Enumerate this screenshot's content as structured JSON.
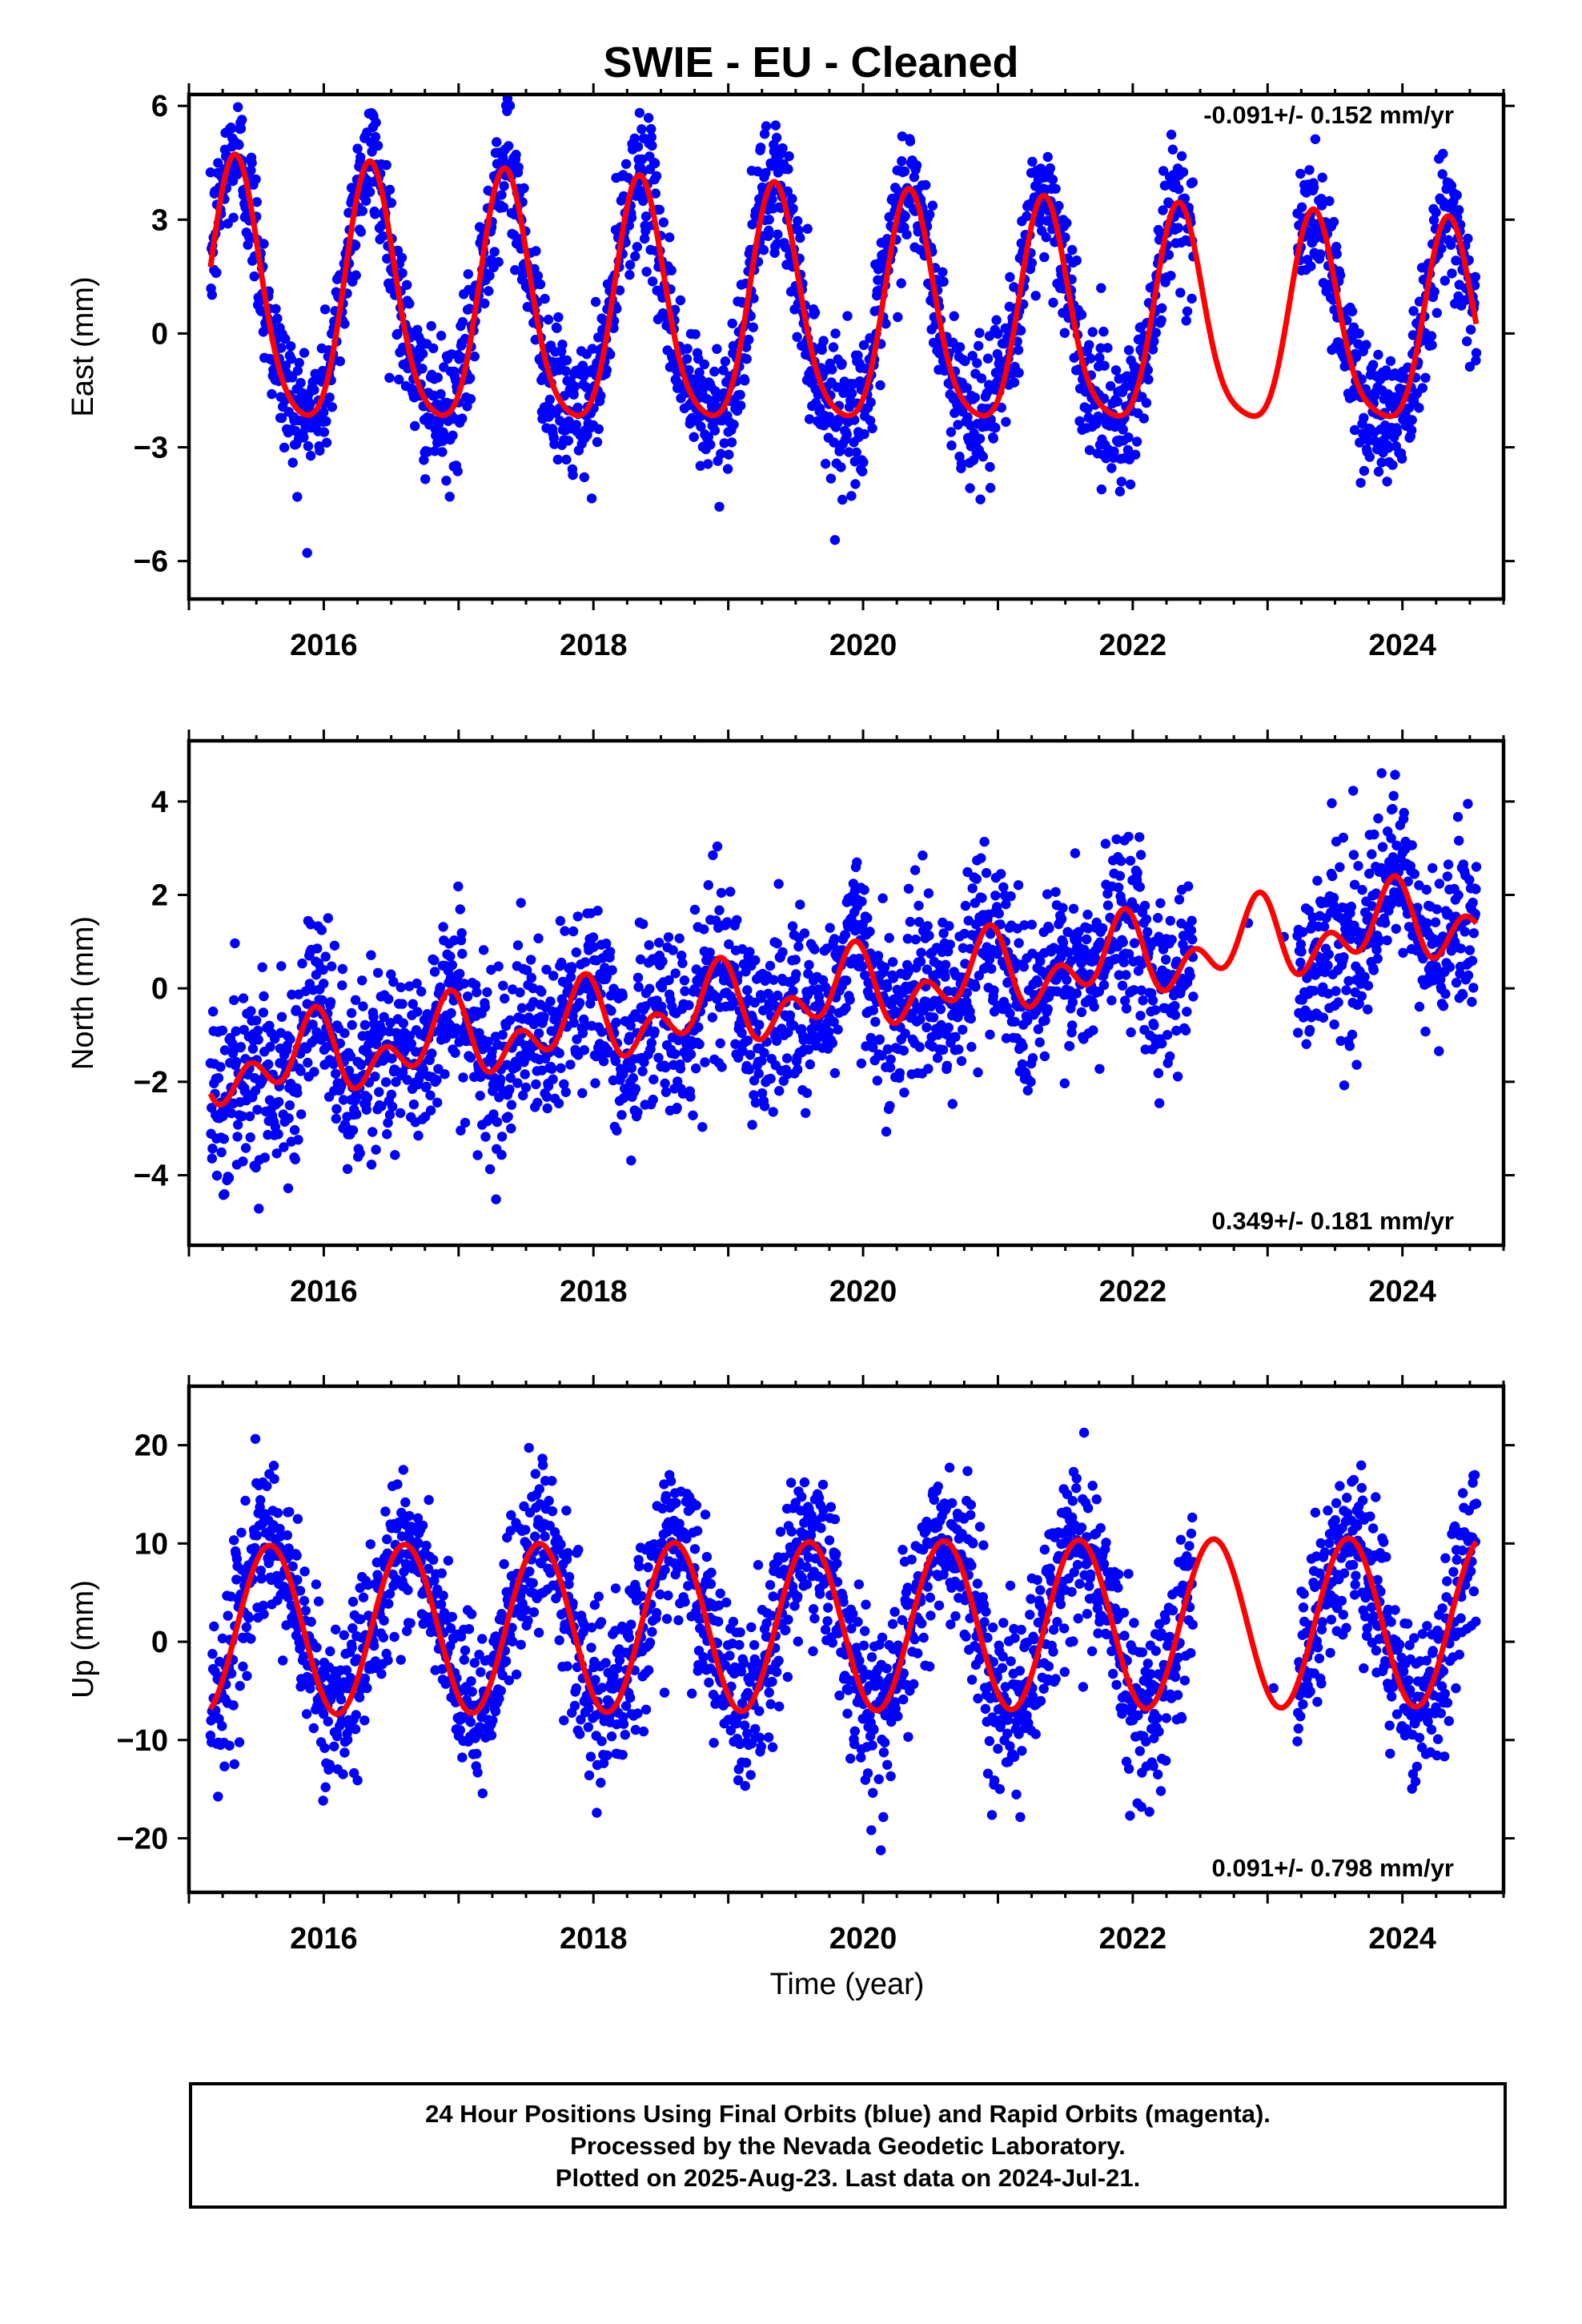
{
  "title": "SWIE  - EU - Cleaned",
  "colors": {
    "data": "#0000ff",
    "model": "#ff0000",
    "frame": "#000000"
  },
  "time_label": "Time (year)",
  "footer": {
    "line1": "24 Hour Positions Using Final Orbits (blue) and Rapid Orbits (magenta).",
    "line2": "Processed by the Nevada Geodetic Laboratory.",
    "line3": "Plotted on 2025-Aug-23. Last data on 2024-Jul-21."
  },
  "chart_data": [
    {
      "type": "scatter",
      "component": "east",
      "ylabel": "East (mm)",
      "rate_text": "-0.091+/- 0.152 mm/yr",
      "rate_position": "top-right",
      "xlim": [
        2015.0,
        2024.75
      ],
      "ylim": [
        -7,
        6.3
      ],
      "xticks": [
        2016,
        2018,
        2020,
        2022,
        2024
      ],
      "yticks": [
        -6,
        -3,
        0,
        3,
        6
      ],
      "ytick_labels": [
        "−6",
        "−3",
        "0",
        "3",
        "6"
      ],
      "grid": false,
      "data_start": 2015.16,
      "data_end": 2024.55,
      "gaps": [
        [
          2022.45,
          2023.22
        ]
      ],
      "model": {
        "offset": 0.34,
        "rate": -0.091,
        "ref_year": 2020.0,
        "annual_amp": 3.0,
        "annual_peak": 0.35,
        "semi_amp": 0.55,
        "semi_peak": 0.33,
        "amp_trend": -0.03
      },
      "scatter_sd": 0.9,
      "series": [
        {
          "name": "Final Orbits",
          "color": "#0000ff"
        },
        {
          "name": "Model fit",
          "color": "#ff0000"
        }
      ]
    },
    {
      "type": "scatter",
      "component": "north",
      "ylabel": "North (mm)",
      "rate_text": "0.349+/- 0.181 mm/yr",
      "rate_position": "bottom-right",
      "xlim": [
        2015.0,
        2024.75
      ],
      "ylim": [
        -5.5,
        5.3
      ],
      "xticks": [
        2016,
        2018,
        2020,
        2022,
        2024
      ],
      "yticks": [
        -4,
        -2,
        0,
        2,
        4
      ],
      "ytick_labels": [
        "−4",
        "−2",
        "0",
        "2",
        "4"
      ],
      "grid": false,
      "data_start": 2015.16,
      "data_end": 2024.55,
      "gaps": [
        [
          2022.45,
          2023.22
        ]
      ],
      "model": {
        "offset": -0.05,
        "rate": 0.349,
        "ref_year": 2020.0,
        "annual_amp": 0.55,
        "annual_peak": 0.9,
        "semi_amp": 0.55,
        "semi_peak": 0.45,
        "amp_trend": 0.0
      },
      "scatter_sd": 0.95,
      "series": [
        {
          "name": "Final Orbits",
          "color": "#0000ff"
        },
        {
          "name": "Model fit",
          "color": "#ff0000"
        }
      ]
    },
    {
      "type": "scatter",
      "component": "up",
      "ylabel": "Up (mm)",
      "rate_text": "0.091+/- 0.798 mm/yr",
      "rate_position": "bottom-right",
      "xlim": [
        2015.0,
        2024.75
      ],
      "ylim": [
        -25.5,
        26
      ],
      "xticks": [
        2016,
        2018,
        2020,
        2022,
        2024
      ],
      "yticks": [
        -20,
        -10,
        0,
        10,
        20
      ],
      "ytick_labels": [
        "−20",
        "−10",
        "0",
        "10",
        "20"
      ],
      "grid": false,
      "data_start": 2015.16,
      "data_end": 2024.55,
      "gaps": [
        [
          2022.45,
          2023.22
        ]
      ],
      "model": {
        "offset": 1.6,
        "rate": 0.091,
        "ref_year": 2020.0,
        "annual_amp": 8.6,
        "annual_peak": 0.6,
        "semi_amp": 0.0,
        "semi_peak": 0.0,
        "amp_trend": 0.0
      },
      "scatter_sd": 4.2,
      "series": [
        {
          "name": "Final Orbits",
          "color": "#0000ff"
        },
        {
          "name": "Model fit",
          "color": "#ff0000"
        }
      ]
    }
  ]
}
